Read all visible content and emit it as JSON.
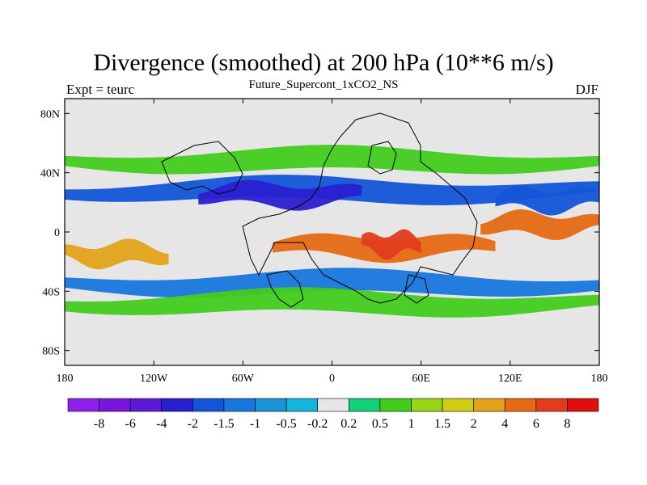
{
  "header": {
    "title": "Divergence (smoothed) at 200 hPa (10**6 m/s)",
    "subtitle": "Future_Supercont_1xCO2_NS",
    "left_string": "Expt = teurc",
    "right_string": "DJF"
  },
  "chart_data": {
    "type": "heatmap",
    "title": "Divergence (smoothed) at 200 hPa (10**6 m/s)",
    "subtitle": "Future_Supercont_1xCO2_NS",
    "xlim": [
      -180,
      180
    ],
    "ylim": [
      -90,
      90
    ],
    "x_ticks": [
      {
        "value": -180,
        "label": "180"
      },
      {
        "value": -120,
        "label": "120W"
      },
      {
        "value": -60,
        "label": "60W"
      },
      {
        "value": 0,
        "label": "0"
      },
      {
        "value": 60,
        "label": "60E"
      },
      {
        "value": 120,
        "label": "120E"
      },
      {
        "value": 180,
        "label": "180"
      }
    ],
    "y_ticks": [
      {
        "value": 80,
        "label": "80N"
      },
      {
        "value": 40,
        "label": "40N"
      },
      {
        "value": 0,
        "label": "0"
      },
      {
        "value": -40,
        "label": "40S"
      },
      {
        "value": -80,
        "label": "80S"
      }
    ],
    "background_color": "#e6e6e6",
    "contour_levels": [
      "-8",
      "-6",
      "-4",
      "-2",
      "-1.5",
      "-1",
      "-0.5",
      "-0.2",
      "0.2",
      "0.5",
      "1",
      "1.5",
      "2",
      "4",
      "6",
      "8"
    ],
    "fill_colors": [
      "#8f1ee8",
      "#7a14df",
      "#5a1ad6",
      "#2a1fd0",
      "#1355d8",
      "#1777dd",
      "#1b93d6",
      "#15b4dc",
      "#e6e6e6",
      "#12cf7a",
      "#42cc1e",
      "#96d418",
      "#d2cd14",
      "#e2a31a",
      "#e56a14",
      "#e23c1c",
      "#e00e0e"
    ],
    "fields": [
      {
        "band": "north-subtropical",
        "lat": 48,
        "lon_start": -180,
        "lon_end": 180,
        "level_index": 10
      },
      {
        "band": "north-jet-convergence",
        "lat": 28,
        "lon_start": -180,
        "lon_end": 180,
        "level_index": 4
      },
      {
        "band": "north-central-convergence-core",
        "lat": 25,
        "lon_start": -90,
        "lon_end": 20,
        "level_index": 3
      },
      {
        "band": "equatorial-divergence",
        "lat": -10,
        "lon_start": -40,
        "lon_end": 110,
        "level_index": 14
      },
      {
        "band": "equatorial-divergence-core",
        "lat": -8,
        "lon_start": 20,
        "lon_end": 60,
        "level_index": 15
      },
      {
        "band": "south-pacific-divergence",
        "lat": -15,
        "lon_start": -180,
        "lon_end": -110,
        "level_index": 13
      },
      {
        "band": "south-convergence",
        "lat": -35,
        "lon_start": -180,
        "lon_end": 180,
        "level_index": 5
      },
      {
        "band": "south-subtropical",
        "lat": -48,
        "lon_start": -180,
        "lon_end": 180,
        "level_index": 10
      },
      {
        "band": "east-pacific-divergence",
        "lat": 5,
        "lon_start": 100,
        "lon_end": 180,
        "level_index": 14
      },
      {
        "band": "northeast-convergence",
        "lat": 22,
        "lon_start": 110,
        "lon_end": 180,
        "level_index": 4
      }
    ],
    "grid": false,
    "legend": "bottom"
  }
}
